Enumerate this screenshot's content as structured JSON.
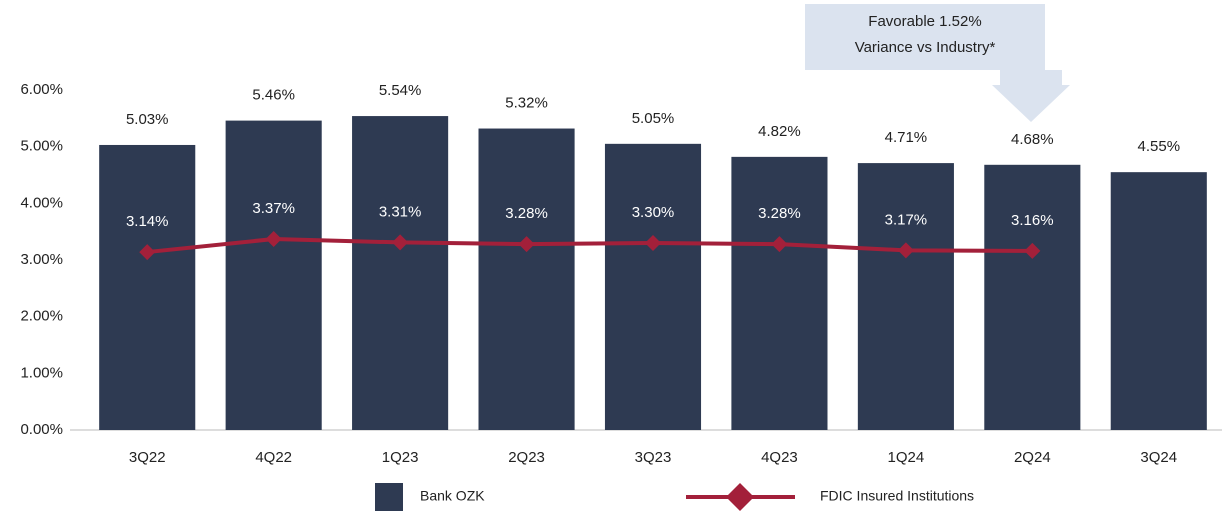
{
  "chart_data": {
    "type": "bar",
    "categories": [
      "3Q22",
      "4Q22",
      "1Q23",
      "2Q23",
      "3Q23",
      "4Q23",
      "1Q24",
      "2Q24",
      "3Q24"
    ],
    "series": [
      {
        "name": "Bank OZK",
        "type": "bar",
        "color": "#2e3a52",
        "values": [
          5.03,
          5.46,
          5.54,
          5.32,
          5.05,
          4.82,
          4.71,
          4.68,
          4.55
        ],
        "value_labels": [
          "5.03%",
          "5.46%",
          "5.54%",
          "5.32%",
          "5.05%",
          "4.82%",
          "4.71%",
          "4.68%",
          "4.55%"
        ]
      },
      {
        "name": "FDIC Insured Institutions",
        "type": "line",
        "color": "#a3203a",
        "values": [
          3.14,
          3.37,
          3.31,
          3.28,
          3.3,
          3.28,
          3.17,
          3.16,
          null
        ],
        "value_labels": [
          "3.14%",
          "3.37%",
          "3.31%",
          "3.28%",
          "3.30%",
          "3.28%",
          "3.17%",
          "3.16%",
          null
        ]
      }
    ],
    "ylim": [
      0,
      6
    ],
    "yticks": [
      {
        "value": 0,
        "label": "0.00%"
      },
      {
        "value": 1,
        "label": "1.00%"
      },
      {
        "value": 2,
        "label": "2.00%"
      },
      {
        "value": 3,
        "label": "3.00%"
      },
      {
        "value": 4,
        "label": "4.00%"
      },
      {
        "value": 5,
        "label": "5.00%"
      },
      {
        "value": 6,
        "label": "6.00%"
      }
    ],
    "grid": false,
    "annotation": [
      "Favorable 1.52%",
      "Variance vs Industry*"
    ]
  }
}
